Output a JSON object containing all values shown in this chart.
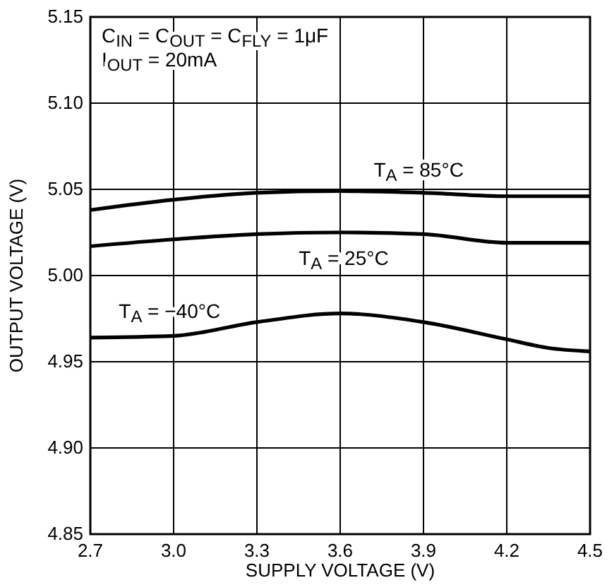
{
  "chart_data": {
    "type": "line",
    "xlabel": "SUPPLY VOLTAGE (V)",
    "ylabel": "OUTPUT VOLTAGE (V)",
    "annotations": [
      "C$_{IN}$ = C$_{OUT}$ = C$_{FLY}$ = 1μF",
      "I$_{OUT}$ = 20mA"
    ],
    "x": [
      2.7,
      3.0,
      3.3,
      3.6,
      3.9,
      4.2,
      4.35,
      4.5
    ],
    "series": [
      {
        "name": "T$_{A}$ = 85°C",
        "color": "#000000",
        "values": [
          5.038,
          5.044,
          5.048,
          5.049,
          5.048,
          5.046,
          5.046,
          5.046
        ]
      },
      {
        "name": "T$_{A}$ = 25°C",
        "color": "#000000",
        "values": [
          5.017,
          5.021,
          5.024,
          5.025,
          5.024,
          5.019,
          5.019,
          5.019
        ]
      },
      {
        "name": "T$_{A}$ = −40°C",
        "color": "#000000",
        "values": [
          4.964,
          4.965,
          4.973,
          4.978,
          4.973,
          4.963,
          4.958,
          4.956
        ]
      }
    ],
    "xlim": [
      2.7,
      4.5
    ],
    "xticks": [
      2.7,
      {
        "value": 3.0,
        "label": "3.0"
      },
      3.3,
      3.6,
      3.9,
      4.2,
      4.5
    ],
    "ylim": [
      4.85,
      5.15
    ],
    "yticks": [
      4.85,
      {
        "value": 4.9,
        "label": "4.90"
      },
      4.95,
      {
        "value": 5.0,
        "label": "5.00"
      },
      5.05,
      {
        "value": 5.1,
        "label": "5.10"
      },
      5.15
    ],
    "grid": true,
    "line_style": "solid"
  }
}
